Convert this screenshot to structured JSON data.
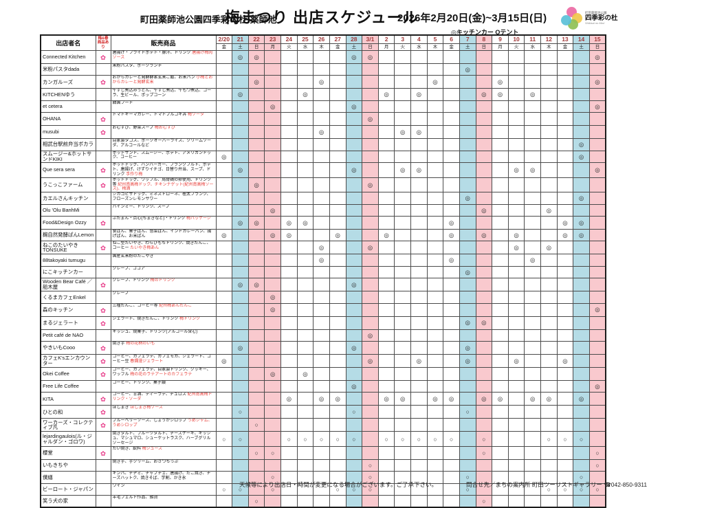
{
  "page": {
    "site_title": "町田薬師池公園四季彩の杜 薬師池",
    "main_title": "梅まつり 出店スケジュール",
    "date_range": "2026年2月20日(金)~3月15日(日)",
    "legend": "◎キッチンカー Oテント",
    "footer_note": "天候等により出店日・時間が変更になる場合がございます。ご了承下さい。",
    "footer_contact": "問合せ先／まちの案内所 町田ツーリストギャラリー ☎042-850-9311"
  },
  "logo": {
    "line1": "町田薬師池公園",
    "name": "四季彩の杜",
    "line2": "Shikisai no Mori",
    "dot_colors": [
      "#ec6ba5",
      "#f0c84b",
      "#8fc055",
      "#5bc0d8"
    ]
  },
  "colors": {
    "saturday_bg": "#b5dce6",
    "sunday_bg": "#f9c9ce",
    "date_number_text": "#a33b3b",
    "flag_flower": "#e8418c",
    "red_product_text": "#e8413c"
  },
  "table": {
    "headers": {
      "vendor": "出店者名",
      "flag_line1": "梅&春",
      "flag_line2": "商品あり",
      "products": "販売商品"
    },
    "dates": [
      {
        "label": "2/20",
        "day": "金",
        "type": "weekday"
      },
      {
        "label": "21",
        "day": "土",
        "type": "sat"
      },
      {
        "label": "22",
        "day": "日",
        "type": "sun"
      },
      {
        "label": "23",
        "day": "月",
        "type": "sun"
      },
      {
        "label": "24",
        "day": "火",
        "type": "weekday"
      },
      {
        "label": "25",
        "day": "水",
        "type": "weekday"
      },
      {
        "label": "26",
        "day": "木",
        "type": "weekday"
      },
      {
        "label": "27",
        "day": "金",
        "type": "weekday"
      },
      {
        "label": "28",
        "day": "土",
        "type": "sat"
      },
      {
        "label": "3/1",
        "day": "日",
        "type": "sun"
      },
      {
        "label": "2",
        "day": "月",
        "type": "weekday"
      },
      {
        "label": "3",
        "day": "火",
        "type": "weekday"
      },
      {
        "label": "4",
        "day": "水",
        "type": "weekday"
      },
      {
        "label": "5",
        "day": "木",
        "type": "weekday"
      },
      {
        "label": "6",
        "day": "金",
        "type": "weekday"
      },
      {
        "label": "7",
        "day": "土",
        "type": "sat"
      },
      {
        "label": "8",
        "day": "日",
        "type": "sun"
      },
      {
        "label": "9",
        "day": "月",
        "type": "weekday"
      },
      {
        "label": "10",
        "day": "火",
        "type": "weekday"
      },
      {
        "label": "11",
        "day": "水",
        "type": "weekday"
      },
      {
        "label": "12",
        "day": "木",
        "type": "weekday"
      },
      {
        "label": "13",
        "day": "金",
        "type": "weekday"
      },
      {
        "label": "14",
        "day": "土",
        "type": "sat"
      },
      {
        "label": "15",
        "day": "日",
        "type": "sun"
      }
    ],
    "rows": [
      {
        "vendor": "Connected Kitchen",
        "flag": true,
        "products": "唐揚げ・フライドポテト・豚汁、ドリンク",
        "products_red": "唐揚げ梅肉ソース",
        "mark": "◎",
        "days": [
          "21",
          "22",
          "28",
          "3/1",
          "15"
        ]
      },
      {
        "vendor": "米粉パスタdada",
        "flag": false,
        "products": "米粉パスタ、ポークランチ",
        "products_red": "",
        "mark": "◎",
        "days": [
          "7"
        ]
      },
      {
        "vendor": "カンガルーズ",
        "flag": true,
        "products": "おからカレーと発酵酵素玄米ご飯、お米パン",
        "products_red": "小梅とおからカレーと発酵玄米",
        "mark": "◎",
        "days": [
          "22",
          "26",
          "5",
          "9",
          "15"
        ]
      },
      {
        "vendor": "KITCHENゆう",
        "flag": false,
        "products": "牛すじ煮込みうどん、牛すじ煮込、牛もつ煮込、コーラ、生ビール、ポップコーン",
        "products_red": "",
        "mark": "◎",
        "days": [
          "21",
          "25",
          "2",
          "4",
          "8",
          "9",
          "11"
        ]
      },
      {
        "vendor": "et cetera",
        "flag": false,
        "products": "韓国フード",
        "products_red": "",
        "mark": "◎",
        "days": [
          "23",
          "28",
          "15"
        ]
      },
      {
        "vendor": "OHANA",
        "flag": true,
        "products": "トマトキーマカレー、トマトプルコギ丼",
        "products_red": "梅ソーダ",
        "mark": "◎",
        "days": [
          "3/1"
        ]
      },
      {
        "vendor": "musubi",
        "flag": true,
        "products": "おむすび、野菜スープ",
        "products_red": "梅おむすび",
        "mark": "◎",
        "days": [
          "26",
          "3",
          "4"
        ]
      },
      {
        "vendor": "相武台駅前弁当ボカラ",
        "flag": false,
        "products": "自家製タコス、ポークオーバーライス、クリームソーダ、アルコールなど",
        "products_red": "",
        "mark": "◎",
        "days": [
          "14"
        ]
      },
      {
        "vendor": "スムージー&ホットサンドKIKI",
        "flag": false,
        "products": "ホットサンド、スムージー、ポテト、アメリカンドック、コーヒー",
        "products_red": "",
        "mark": "◎",
        "days": [
          "2/20",
          "14"
        ]
      },
      {
        "vendor": "Que sera sera",
        "flag": true,
        "products": "ホットドッグ、ハンバーガー、フランクフルト、ポテト、唐揚げ、けずりイチゴ、日替り弁当、スープ、ドリンク",
        "products_red": "手作り梅",
        "mark": "◎",
        "days": [
          "21",
          "28",
          "3",
          "4",
          "10",
          "11",
          "15"
        ]
      },
      {
        "vendor": "うこっこファーム",
        "flag": true,
        "products": "ホットドッグ、ワッフル、烏骨鶏の卵使用、ドリンク等",
        "products_red": "紀州南高梅ドック、チキンナゲット(紀州南高梅ソース)、梅酒",
        "mark": "◎",
        "days": [
          "22",
          "3/1"
        ]
      },
      {
        "vendor": "カエルさんキッチン",
        "flag": false,
        "products": "シカゴピザドッグ、ミネストローネ、極太フランク、フローズンレモンサワー",
        "products_red": "",
        "mark": "◎",
        "days": [
          "7",
          "14"
        ]
      },
      {
        "vendor": "Olu 'Olu BanhMi",
        "flag": false,
        "products": "バインミー、ドリンク、スープ",
        "products_red": "",
        "mark": "◎",
        "days": [
          "23",
          "8",
          "12"
        ]
      },
      {
        "vendor": "Food&Design Ozzy",
        "flag": true,
        "products": "ぶたまん・点心(ちまきなど)・ドリンク",
        "products_red": "梅パッケージ",
        "mark": "◎",
        "days": [
          "21",
          "22",
          "24",
          "25",
          "6",
          "13",
          "14"
        ]
      },
      {
        "vendor": "麹自然発酵ぱんLemon",
        "flag": false,
        "products": "食ぱん、菓子ぱん、惣菜ぱん、インドカレーパン、揚げぱん、お米ぱん",
        "products_red": "",
        "mark": "◎",
        "days": [
          "2/20",
          "23",
          "24",
          "27",
          "2",
          "6",
          "8",
          "10",
          "13",
          "14"
        ]
      },
      {
        "vendor": "ねこのたいやきTONSUKE",
        "flag": true,
        "products": "ねこ型たいやき、わらびもちドリンク、焼きだんご、コーヒー",
        "products_red": "たいやき梅あん",
        "mark": "◎",
        "days": [
          "26",
          "3/1",
          "10",
          "12"
        ]
      },
      {
        "vendor": "88takoyaki tumugu",
        "flag": false,
        "products": "国産玄米粉のたこやき",
        "products_red": "",
        "mark": "◎",
        "days": [
          "26",
          "6",
          "11"
        ]
      },
      {
        "vendor": "にこキッチンカー",
        "flag": false,
        "products": "クレープ、ココア",
        "products_red": "",
        "mark": "◎",
        "days": [
          "7"
        ]
      },
      {
        "vendor": "Wooden Bear Café ／ 船木屋",
        "flag": true,
        "products": "クレープ、ドリンク",
        "products_red": "梅のドリンク",
        "mark": "◎",
        "days": [
          "21",
          "22",
          "28"
        ]
      },
      {
        "vendor": "くるまカフェEnkel",
        "flag": false,
        "products": "クレープ",
        "products_red": "",
        "mark": "◎",
        "days": [
          "23"
        ]
      },
      {
        "vendor": "森のキッチン",
        "flag": true,
        "products": "三種だんご、コーヒー等",
        "products_red": "紀州梅あんだんご",
        "mark": "◎",
        "days": [
          "23",
          "15"
        ]
      },
      {
        "vendor": "まるジェラート",
        "flag": true,
        "products": "ジェラート、焼きだんご、ドリンク",
        "products_red": "梅ドリンク",
        "mark": "◎",
        "days": [
          "7",
          "8"
        ]
      },
      {
        "vendor": "Petit café de NAO",
        "flag": false,
        "products": "キッシュ、焼菓子、ドリンク(アルコール含む)",
        "products_red": "",
        "mark": "◎",
        "days": [
          "3/1"
        ]
      },
      {
        "vendor": "やきいもCooo",
        "flag": true,
        "products": "焼き芋",
        "products_red": "梅の花柄のいも",
        "mark": "◎",
        "days": [
          "21",
          "28",
          "7"
        ]
      },
      {
        "vendor": "カフェK'sエンカウンター",
        "flag": true,
        "products": "コーヒー、カフェラテ、カフェモカ、ジェラート、コーヒー豆",
        "products_red": "春爛漫ジェラート",
        "mark": "◎",
        "days": [
          "2/20",
          "3/1",
          "4",
          "7",
          "10",
          "13"
        ]
      },
      {
        "vendor": "Okei Coffee",
        "flag": true,
        "products": "コーヒー、カフェラテ、自家製ドリンク、クッキー、ワッフル",
        "products_red": "梅の花のラテアートのカフェラテ",
        "mark": "◎",
        "days": [
          "23",
          "25"
        ]
      },
      {
        "vendor": "Free Life Coffee",
        "flag": false,
        "products": "コーヒー、ドリンク、菓子類",
        "products_red": "",
        "mark": "◎",
        "days": [
          "28",
          "15"
        ]
      },
      {
        "vendor": "KITA",
        "flag": true,
        "products": "コーヒー、甘酒、ティーラテ、チュロス",
        "products_red": "紀州南高梅ドリンク・ソーダ",
        "mark": "◎",
        "days": [
          "24",
          "26",
          "27",
          "2",
          "3",
          "5",
          "6",
          "8",
          "9",
          "11",
          "12",
          "14"
        ]
      },
      {
        "vendor": "ひとの和",
        "flag": true,
        "products": "ほしまき",
        "products_red": "ほしまき梅ソース",
        "mark": "○",
        "days": [
          "21",
          "28",
          "7"
        ]
      },
      {
        "vendor": "ワーカーズ・コレクティブ凡",
        "flag": true,
        "products": "ブルーベリーソース、しょうがシロップ",
        "products_red": "うめジャム、うめシロップ",
        "mark": "○",
        "days": [
          "22"
        ]
      },
      {
        "vendor": "lejardingaulois(ル・ジャルダン・ゴロワ)",
        "flag": false,
        "products": "焼きタルト、フルーツタルト、チーズケーキ、キッシュ、マシュマロ、シューケットラスク、ハーブグリルソーセージ",
        "products_red": "",
        "mark": "○",
        "days": [
          "2/20",
          "21",
          "24",
          "25",
          "26",
          "27",
          "28",
          "2",
          "3",
          "4",
          "5",
          "6",
          "8",
          "12",
          "13",
          "14"
        ]
      },
      {
        "vendor": "櫻堂",
        "flag": true,
        "products": "たい焼き、飲料",
        "products_red": "梅ジュース",
        "mark": "○",
        "days": [
          "22",
          "23",
          "8",
          "15"
        ]
      },
      {
        "vendor": "いもきちや",
        "flag": false,
        "products": "焼き芋、芋クリーム、おさつちっぷ",
        "products_red": "",
        "mark": "○",
        "days": [
          "3/1",
          "15"
        ]
      },
      {
        "vendor": "僕繕",
        "flag": false,
        "products": "キンパ、チヂミ、チャプチェ、唐揚げ、たこ焼き、チーズハットク、焼きそば、学割、かき氷",
        "products_red": "",
        "mark": "○",
        "days": [
          "23",
          "3/1",
          "7",
          "14"
        ]
      },
      {
        "vendor": "ビーロート・ジャパン",
        "flag": false,
        "products": "ワイン",
        "products_red": "",
        "mark": "○",
        "days": [
          "2/20",
          "21",
          "23",
          "27",
          "28",
          "3/1",
          "7",
          "12",
          "13",
          "14",
          "15"
        ]
      },
      {
        "vendor": "笑う犬の家",
        "flag": false,
        "products": "羊毛フェルト作品、雑貨",
        "products_red": "",
        "mark": "○",
        "days": [
          "22",
          "8"
        ]
      }
    ]
  }
}
